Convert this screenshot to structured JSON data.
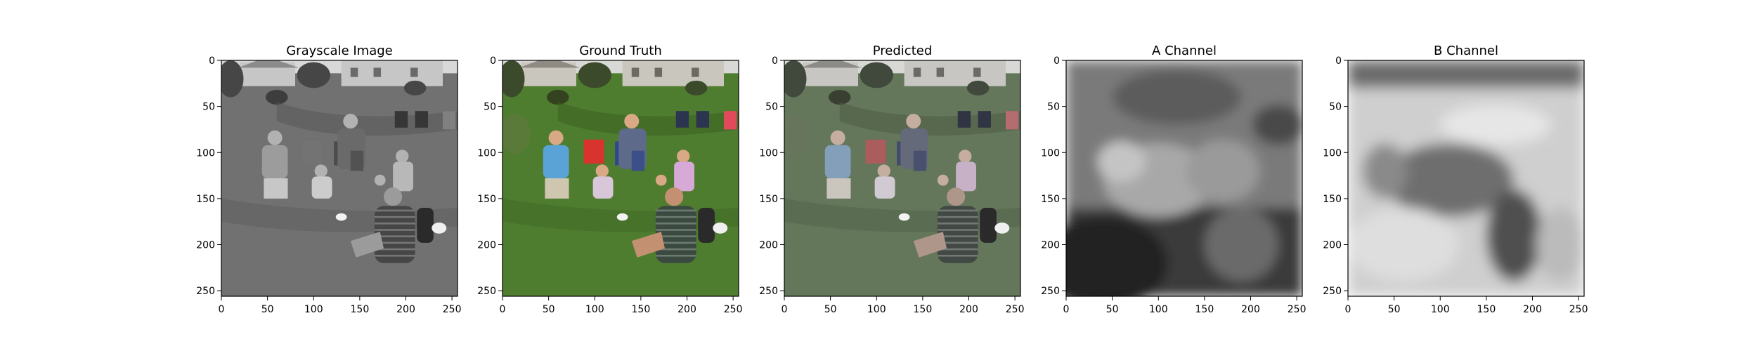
{
  "figure": {
    "panels": [
      {
        "id": "grayscale",
        "title": "Grayscale Image",
        "kind": "grayscale"
      },
      {
        "id": "ground-truth",
        "title": "Ground Truth",
        "kind": "color"
      },
      {
        "id": "predicted",
        "title": "Predicted",
        "kind": "muted-color"
      },
      {
        "id": "a-channel",
        "title": "A Channel",
        "kind": "a-channel"
      },
      {
        "id": "b-channel",
        "title": "B Channel",
        "kind": "b-channel"
      }
    ],
    "x_ticks": [
      "0",
      "50",
      "100",
      "150",
      "200",
      "250"
    ],
    "y_ticks": [
      "0",
      "50",
      "100",
      "150",
      "200",
      "250"
    ],
    "tick_values": [
      0,
      50,
      100,
      150,
      200,
      250
    ],
    "axis_range": [
      0,
      256
    ],
    "colors": {
      "grass": "#4f7d2f",
      "grass_dark": "#3a5f22",
      "house": "#c9c6bd",
      "sky": "#d8d8d6",
      "tree": "#3c4a2c",
      "shirt_blue": "#5aa3d6",
      "chair_red": "#d8332e",
      "stripe_shirt": "#3b4a40",
      "skin": "#d9a885"
    }
  }
}
